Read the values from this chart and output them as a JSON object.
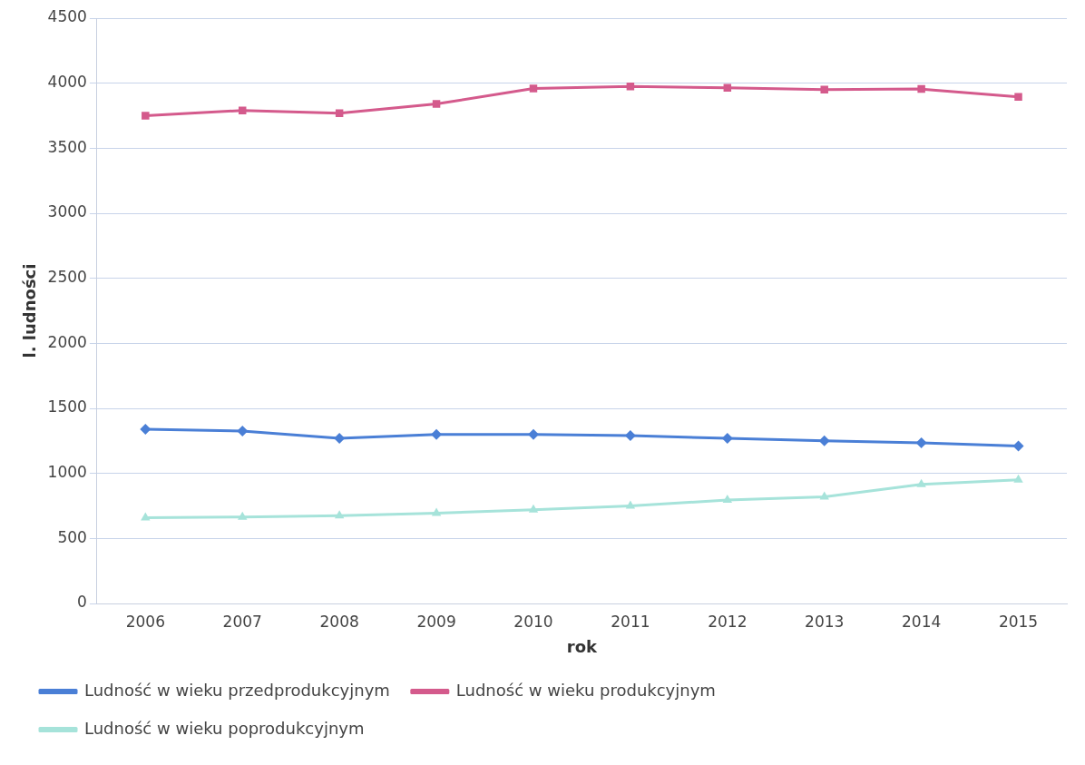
{
  "chart_data": {
    "type": "line",
    "xlabel": "rok",
    "ylabel": "l. ludności",
    "categories": [
      "2006",
      "2007",
      "2008",
      "2009",
      "2010",
      "2011",
      "2012",
      "2013",
      "2014",
      "2015"
    ],
    "series": [
      {
        "name": "Ludność w wieku przedprodukcyjnym",
        "color": "#4a7fd6",
        "marker": "diamond",
        "values": [
          1340,
          1325,
          1270,
          1300,
          1300,
          1290,
          1270,
          1250,
          1235,
          1210
        ]
      },
      {
        "name": "Ludność w wieku produkcyjnym",
        "color": "#d45a8c",
        "marker": "square",
        "values": [
          3750,
          3790,
          3770,
          3840,
          3960,
          3975,
          3965,
          3950,
          3955,
          3895
        ]
      },
      {
        "name": "Ludność w wieku poprodukcyjnym",
        "color": "#a6e3da",
        "marker": "triangle",
        "values": [
          660,
          665,
          675,
          695,
          720,
          750,
          795,
          820,
          915,
          950
        ]
      }
    ],
    "ylim": [
      0,
      4500
    ],
    "yticks": [
      0,
      500,
      1000,
      1500,
      2000,
      2500,
      3000,
      3500,
      4000,
      4500
    ],
    "grid": "y",
    "legend": "bottom"
  }
}
